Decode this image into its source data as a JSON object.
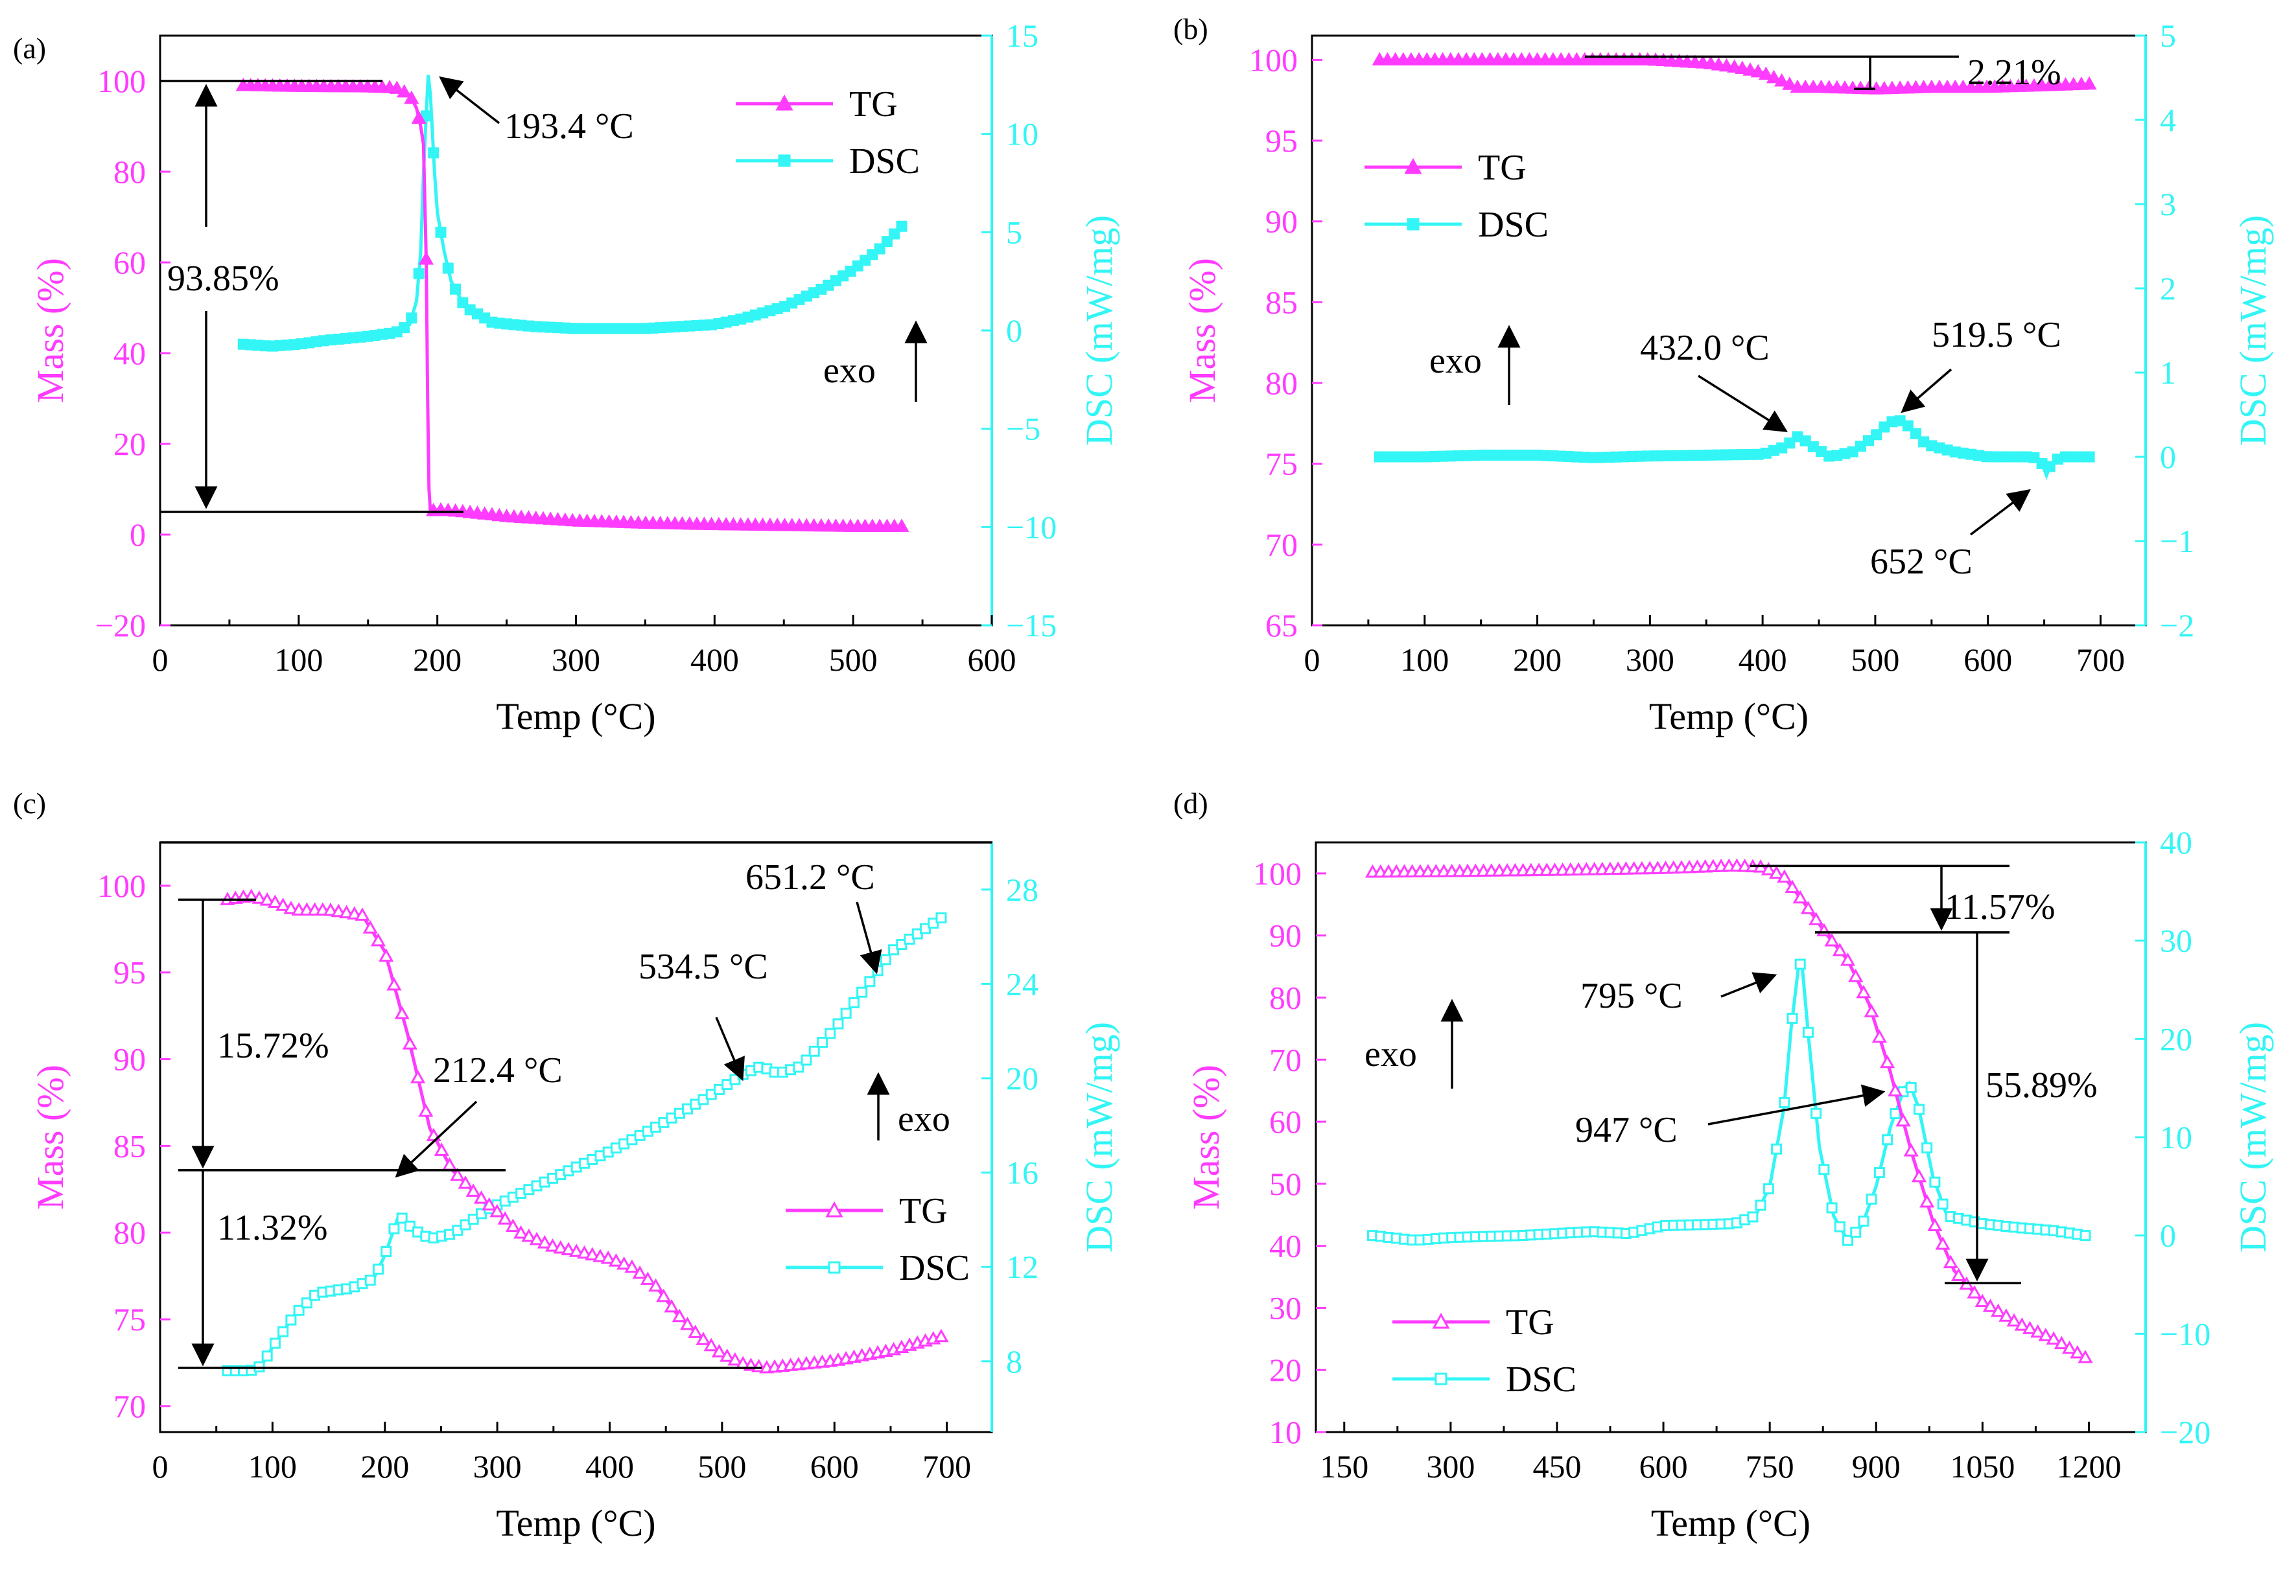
{
  "colors": {
    "tg": "#ff3bff",
    "dsc": "#33f5f5",
    "axis": "#000000",
    "annot": "#000000"
  },
  "chart_data": [
    {
      "id": "a",
      "panel_label": "(a)",
      "type": "line",
      "xlabel": "Temp (°C)",
      "ylabel_left": "Mass (%)",
      "ylabel_right": "DSC (mW/mg)",
      "xlim": [
        0,
        600
      ],
      "ylim_left": [
        -20,
        110
      ],
      "ylim_right": [
        -15,
        15
      ],
      "xticks": [
        0,
        100,
        200,
        300,
        400,
        500,
        600
      ],
      "yticks_left": [
        -20,
        0,
        20,
        40,
        60,
        80,
        100
      ],
      "yticks_right": [
        -15,
        -10,
        -5,
        0,
        5,
        10,
        15
      ],
      "ytick_labels_left": [
        "−20",
        "0",
        "20",
        "40",
        "60",
        "80",
        "100"
      ],
      "ytick_labels_right": [
        "−15",
        "−10",
        "−5",
        "0",
        "5",
        "10",
        "15"
      ],
      "grid": false,
      "legend": {
        "position": "top-right",
        "entries": [
          "TG",
          "DSC"
        ],
        "marker_style": "filled"
      },
      "series": [
        {
          "name": "TG",
          "axis": "left",
          "x": [
            60,
            100,
            150,
            170,
            180,
            185,
            188,
            190,
            192,
            193,
            194,
            195,
            196,
            200,
            220,
            250,
            300,
            350,
            400,
            450,
            500,
            535
          ],
          "y": [
            99,
            98.8,
            98.7,
            98.5,
            97,
            94,
            90,
            86,
            60,
            30,
            10,
            5,
            5.2,
            5.5,
            5,
            4,
            3,
            2.5,
            2.2,
            2,
            1.8,
            1.8
          ]
        },
        {
          "name": "DSC",
          "axis": "right",
          "x": [
            60,
            80,
            100,
            120,
            150,
            170,
            180,
            185,
            188,
            190,
            192,
            193.4,
            195,
            198,
            200,
            205,
            210,
            220,
            240,
            270,
            300,
            350,
            400,
            420,
            450,
            480,
            500,
            520,
            535
          ],
          "y": [
            -0.7,
            -0.8,
            -0.7,
            -0.5,
            -0.3,
            -0.1,
            0.3,
            1.5,
            4,
            8,
            11,
            13,
            12,
            8,
            6,
            4,
            2.5,
            1.2,
            0.4,
            0.2,
            0.1,
            0.1,
            0.3,
            0.6,
            1.2,
            2.2,
            3.1,
            4.2,
            5.3
          ]
        }
      ],
      "annotations": [
        {
          "text": "193.4 °C",
          "x": 193.4
        },
        {
          "text": "93.85%"
        },
        {
          "text": "exo"
        }
      ]
    },
    {
      "id": "b",
      "panel_label": "(b)",
      "type": "line",
      "xlabel": "Temp (°C)",
      "ylabel_left": "Mass (%)",
      "ylabel_right": "DSC (mW/mg)",
      "xlim": [
        0,
        740
      ],
      "ylim_left": [
        65,
        101.5
      ],
      "ylim_right": [
        -2,
        5
      ],
      "xticks": [
        0,
        100,
        200,
        300,
        400,
        500,
        600,
        700
      ],
      "yticks_left": [
        65,
        70,
        75,
        80,
        85,
        90,
        95,
        100
      ],
      "yticks_right": [
        -2,
        -1,
        0,
        1,
        2,
        3,
        4,
        5
      ],
      "ytick_labels_left": [
        "65",
        "70",
        "75",
        "80",
        "85",
        "90",
        "95",
        "100"
      ],
      "ytick_labels_right": [
        "−2",
        "−1",
        "0",
        "1",
        "2",
        "3",
        "4",
        "5"
      ],
      "grid": false,
      "legend": {
        "position": "top-left",
        "entries": [
          "TG",
          "DSC"
        ],
        "marker_style": "filled"
      },
      "series": [
        {
          "name": "TG",
          "axis": "left",
          "x": [
            60,
            100,
            200,
            300,
            350,
            380,
            400,
            420,
            430,
            450,
            500,
            550,
            600,
            650,
            690
          ],
          "y": [
            100,
            100,
            100,
            100,
            99.8,
            99.5,
            99.2,
            98.6,
            98.3,
            98.3,
            98.2,
            98.3,
            98.3,
            98.4,
            98.5
          ]
        },
        {
          "name": "DSC",
          "axis": "right",
          "x": [
            60,
            100,
            150,
            200,
            250,
            300,
            350,
            400,
            420,
            432,
            445,
            460,
            480,
            500,
            510,
            519.5,
            530,
            545,
            570,
            600,
            640,
            648,
            652,
            656,
            665,
            690
          ],
          "y": [
            0,
            0,
            0.02,
            0.02,
            -0.01,
            0.01,
            0.02,
            0.03,
            0.12,
            0.25,
            0.12,
            0,
            0.06,
            0.25,
            0.38,
            0.45,
            0.36,
            0.15,
            0.06,
            0,
            0,
            -0.08,
            -0.22,
            -0.08,
            0,
            0
          ]
        }
      ],
      "annotations": [
        {
          "text": "2.21%"
        },
        {
          "text": "432.0 °C",
          "x": 432.0
        },
        {
          "text": "519.5 °C",
          "x": 519.5
        },
        {
          "text": "652 °C",
          "x": 652
        },
        {
          "text": "exo"
        }
      ]
    },
    {
      "id": "c",
      "panel_label": "(c)",
      "type": "line",
      "xlabel": "Temp (°C)",
      "ylabel_left": "Mass (%)",
      "ylabel_right": "DSC (mW/mg)",
      "xlim": [
        0,
        740
      ],
      "ylim_left": [
        68.5,
        102.5
      ],
      "ylim_right": [
        5,
        30
      ],
      "xticks": [
        0,
        100,
        200,
        300,
        400,
        500,
        600,
        700
      ],
      "yticks_left": [
        70,
        75,
        80,
        85,
        90,
        95,
        100
      ],
      "yticks_right": [
        8,
        12,
        16,
        20,
        24,
        28
      ],
      "ytick_labels_left": [
        "70",
        "75",
        "80",
        "85",
        "90",
        "95",
        "100"
      ],
      "ytick_labels_right": [
        "8",
        "12",
        "16",
        "20",
        "24",
        "28"
      ],
      "grid": false,
      "legend": {
        "position": "lower-right",
        "entries": [
          "TG",
          "DSC"
        ],
        "marker_style": "open"
      },
      "series": [
        {
          "name": "TG",
          "axis": "left",
          "x": [
            60,
            80,
            100,
            120,
            150,
            180,
            200,
            220,
            240,
            260,
            280,
            300,
            320,
            350,
            400,
            420,
            440,
            460,
            480,
            500,
            520,
            540,
            600,
            650,
            695
          ],
          "y": [
            99.2,
            99.4,
            99.1,
            98.6,
            98.6,
            98.3,
            96.2,
            91.5,
            86,
            83.6,
            82.3,
            81.2,
            80,
            79.2,
            78.5,
            78,
            77,
            75.3,
            74,
            73,
            72.4,
            72.2,
            72.6,
            73.2,
            74
          ]
        },
        {
          "name": "DSC",
          "axis": "right",
          "x": [
            60,
            80,
            90,
            100,
            120,
            140,
            170,
            190,
            200,
            212.4,
            225,
            240,
            260,
            290,
            320,
            360,
            400,
            440,
            480,
            520,
            534.5,
            550,
            570,
            600,
            630,
            651.2,
            670,
            695
          ],
          "y": [
            7.6,
            7.6,
            7.8,
            8.6,
            10,
            10.9,
            11.1,
            11.5,
            12.5,
            14.2,
            13.6,
            13.2,
            13.4,
            14.4,
            15.1,
            16,
            16.9,
            17.9,
            19,
            20.2,
            20.5,
            20.2,
            20.5,
            22.1,
            24,
            25.4,
            26,
            26.8
          ]
        }
      ],
      "annotations": [
        {
          "text": "15.72%"
        },
        {
          "text": "11.32%"
        },
        {
          "text": "212.4 °C",
          "x": 212.4
        },
        {
          "text": "534.5 °C",
          "x": 534.5
        },
        {
          "text": "651.2 °C",
          "x": 651.2
        },
        {
          "text": "exo"
        }
      ]
    },
    {
      "id": "d",
      "panel_label": "(d)",
      "type": "line",
      "xlabel": "Temp (°C)",
      "ylabel_left": "Mass (%)",
      "ylabel_right": "DSC (mW/mg)",
      "xlim": [
        110,
        1280
      ],
      "ylim_left": [
        10,
        105
      ],
      "ylim_right": [
        -20,
        40
      ],
      "xticks": [
        150,
        300,
        450,
        600,
        750,
        900,
        1050,
        1200
      ],
      "yticks_left": [
        10,
        20,
        30,
        40,
        50,
        60,
        70,
        80,
        90,
        100
      ],
      "yticks_right": [
        -20,
        -10,
        0,
        10,
        20,
        30,
        40
      ],
      "ytick_labels_left": [
        "10",
        "20",
        "30",
        "40",
        "50",
        "60",
        "70",
        "80",
        "90",
        "100"
      ],
      "ytick_labels_right": [
        "−20",
        "−10",
        "0",
        "10",
        "20",
        "30",
        "40"
      ],
      "grid": false,
      "legend": {
        "position": "lower-left",
        "entries": [
          "TG",
          "DSC"
        ],
        "marker_style": "open"
      },
      "series": [
        {
          "name": "TG",
          "axis": "left",
          "x": [
            190,
            300,
            450,
            600,
            700,
            740,
            770,
            800,
            830,
            860,
            890,
            920,
            950,
            980,
            1010,
            1050,
            1100,
            1150,
            1195
          ],
          "y": [
            100.2,
            100.3,
            100.5,
            100.8,
            101.2,
            101,
            99.5,
            95,
            90.2,
            86,
            79,
            68,
            55,
            44,
            36,
            31,
            27.5,
            25,
            22
          ]
        },
        {
          "name": "DSC",
          "axis": "right",
          "x": [
            190,
            250,
            300,
            400,
            500,
            550,
            600,
            700,
            730,
            750,
            770,
            780,
            790,
            795,
            805,
            820,
            840,
            860,
            880,
            900,
            920,
            940,
            947,
            960,
            980,
            1000,
            1050,
            1100,
            1150,
            1195
          ],
          "y": [
            0,
            -0.5,
            -0.2,
            0,
            0.4,
            0.2,
            1,
            1.2,
            2,
            5,
            13,
            21,
            27,
            28,
            20,
            9,
            2,
            -0.5,
            1,
            5,
            11,
            15,
            15.5,
            13,
            6,
            2,
            1.2,
            0.8,
            0.5,
            0
          ]
        }
      ],
      "annotations": [
        {
          "text": "11.57%"
        },
        {
          "text": "55.89%"
        },
        {
          "text": "795 °C",
          "x": 795
        },
        {
          "text": "947 °C",
          "x": 947
        },
        {
          "text": "exo"
        }
      ]
    }
  ]
}
